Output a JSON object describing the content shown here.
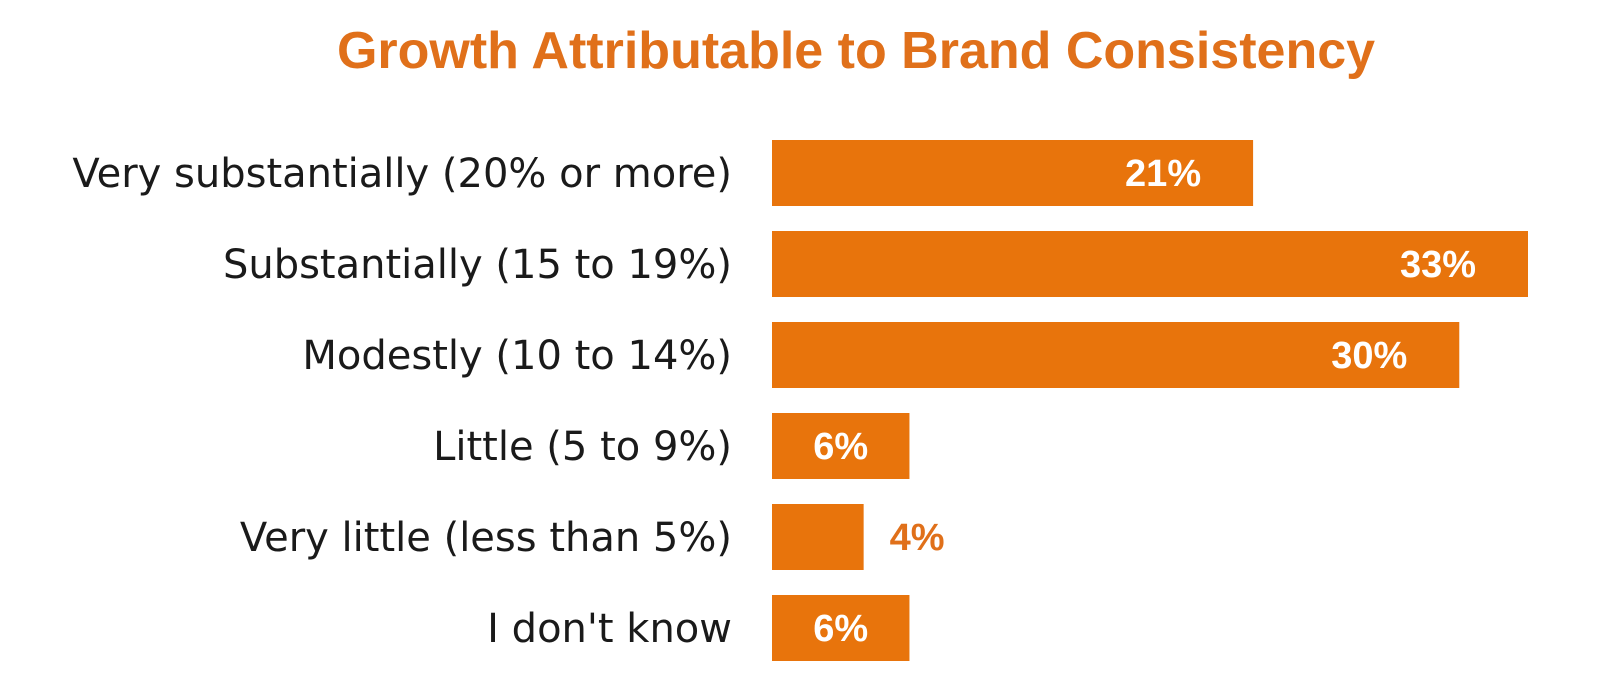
{
  "chart_data": {
    "type": "bar",
    "orientation": "horizontal",
    "title": "Growth Attributable to Brand Consistency",
    "categories": [
      "Very substantially (20% or more)",
      "Substantially (15 to 19%)",
      "Modestly (10 to 14%)",
      "Little (5 to 9%)",
      "Very little (less than 5%)",
      "I don't know"
    ],
    "values": [
      21,
      33,
      30,
      6,
      4,
      6
    ],
    "data_labels": [
      "21%",
      "33%",
      "30%",
      "6%",
      "4%",
      "6%"
    ],
    "xlim": [
      0,
      33
    ],
    "grid": false,
    "legend": "none",
    "colors": {
      "bar": "#E8740C",
      "title": "#E0701A",
      "label_inside": "#ffffff",
      "label_outside": "#E0701A"
    }
  }
}
